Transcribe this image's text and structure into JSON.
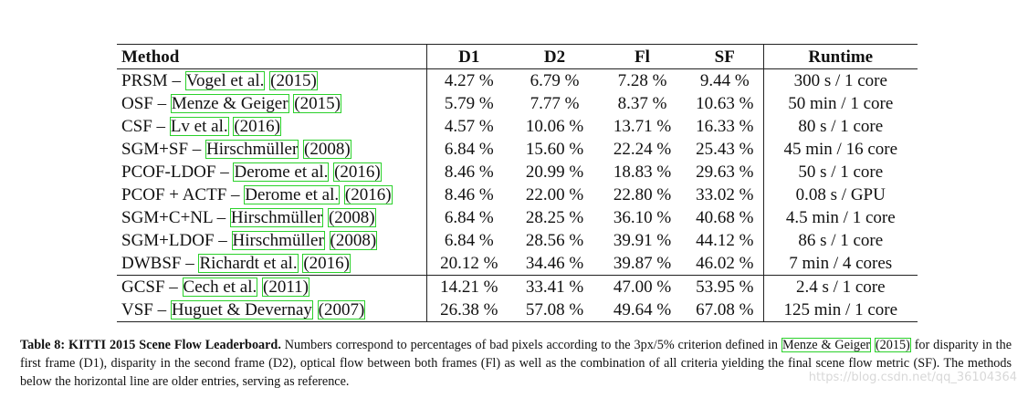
{
  "table": {
    "header": [
      "Method",
      "D1",
      "D2",
      "Fl",
      "SF",
      "Runtime"
    ],
    "rows": [
      {
        "method": "PRSM –",
        "authors": "Vogel et al.",
        "year": "(2015)",
        "cells": [
          "4.27 %",
          "6.79 %",
          "7.28 %",
          "9.44 %",
          "300 s / 1 core"
        ]
      },
      {
        "method": "OSF –",
        "authors": "Menze & Geiger",
        "year": "(2015)",
        "cells": [
          "5.79 %",
          "7.77 %",
          "8.37 %",
          "10.63 %",
          "50 min / 1 core"
        ]
      },
      {
        "method": "CSF –",
        "authors": "Lv et al.",
        "year": "(2016)",
        "cells": [
          "4.57 %",
          "10.06 %",
          "13.71 %",
          "16.33 %",
          "80 s / 1 core"
        ]
      },
      {
        "method": "SGM+SF –",
        "authors": "Hirschmüller",
        "year": "(2008)",
        "cells": [
          "6.84 %",
          "15.60 %",
          "22.24 %",
          "25.43 %",
          "45 min / 16 core"
        ]
      },
      {
        "method": "PCOF-LDOF –",
        "authors": "Derome et al.",
        "year": "(2016)",
        "cells": [
          "8.46 %",
          "20.99 %",
          "18.83 %",
          "29.63 %",
          "50 s / 1 core"
        ]
      },
      {
        "method": "PCOF + ACTF –",
        "authors": "Derome et al.",
        "year": "(2016)",
        "cells": [
          "8.46 %",
          "22.00 %",
          "22.80 %",
          "33.02 %",
          "0.08 s / GPU"
        ]
      },
      {
        "method": "SGM+C+NL –",
        "authors": "Hirschmüller",
        "year": "(2008)",
        "cells": [
          "6.84 %",
          "28.25 %",
          "36.10 %",
          "40.68 %",
          "4.5 min / 1 core"
        ]
      },
      {
        "method": "SGM+LDOF –",
        "authors": "Hirschmüller",
        "year": "(2008)",
        "cells": [
          "6.84 %",
          "28.56 %",
          "39.91 %",
          "44.12 %",
          "86 s / 1 core"
        ]
      },
      {
        "method": "DWBSF –",
        "authors": "Richardt et al.",
        "year": "(2016)",
        "cells": [
          "20.12 %",
          "34.46 %",
          "39.87 %",
          "46.02 %",
          "7 min / 4 cores"
        ]
      },
      {
        "method": "GCSF –",
        "authors": "Cech et al.",
        "year": "(2011)",
        "cells": [
          "14.21 %",
          "33.41 %",
          "47.00 %",
          "53.95 %",
          "2.4 s / 1 core"
        ]
      },
      {
        "method": "VSF –",
        "authors": "Huguet & Devernay",
        "year": "(2007)",
        "cells": [
          "26.38 %",
          "57.08 %",
          "49.64 %",
          "67.08 %",
          "125 min / 1 core"
        ]
      }
    ]
  },
  "caption": {
    "label": "Table 8:",
    "title": "KITTI 2015 Scene Flow Leaderboard.",
    "text_1": "Numbers correspond to percentages of bad pixels according to the 3px/5% criterion defined in",
    "link_authors": "Menze & Geiger",
    "link_year": "(2015)",
    "text_2": "for disparity in the first frame (D1), disparity in the second frame (D2), optical flow between both frames (Fl) as well as the combination of all criteria yielding the final scene flow metric (SF). The methods below the horizontal line are older entries, serving as reference."
  },
  "watermark": "https://blog.csdn.net/qq_36104364"
}
